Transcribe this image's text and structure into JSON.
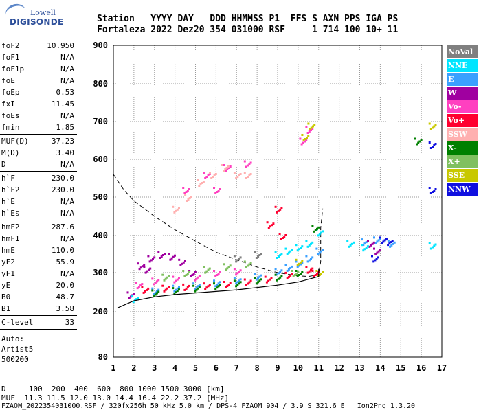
{
  "logo": {
    "line1": "Lowell",
    "line2": "DIGISONDE"
  },
  "header": {
    "line1": "Station   YYYY DAY   DDD HHMMSS P1  FFS S AXN PPS IGA PS",
    "line2": "Fortaleza 2022 Dez20 354 031000 RSF     1 714 100 10+ 11"
  },
  "params": {
    "g1": [
      [
        "foF2",
        "10.950"
      ],
      [
        "foF1",
        "N/A"
      ],
      [
        "foF1p",
        "N/A"
      ],
      [
        "foE",
        "N/A"
      ],
      [
        "foEp",
        "0.53"
      ],
      [
        "fxI",
        "11.45"
      ],
      [
        "foEs",
        "N/A"
      ],
      [
        "fmin",
        "1.85"
      ]
    ],
    "g2": [
      [
        "MUF(D)",
        "37.23"
      ],
      [
        "M(D)",
        "3.40"
      ],
      [
        "D",
        "N/A"
      ]
    ],
    "g3": [
      [
        "h`F",
        "230.0"
      ],
      [
        "h`F2",
        "230.0"
      ],
      [
        "h`E",
        "N/A"
      ],
      [
        "h`Es",
        "N/A"
      ]
    ],
    "g4": [
      [
        "hmF2",
        "287.6"
      ],
      [
        "hmF1",
        "N/A"
      ],
      [
        "hmE",
        "110.0"
      ],
      [
        "yF2",
        "55.9"
      ],
      [
        "yF1",
        "N/A"
      ],
      [
        "yE",
        "20.0"
      ],
      [
        "B0",
        "48.7"
      ],
      [
        "B1",
        "3.58"
      ]
    ],
    "g5": [
      [
        "C-level",
        "33"
      ]
    ],
    "auto": [
      "Auto:",
      "Artist5",
      "500200"
    ]
  },
  "legend": [
    {
      "label": "NoVal",
      "color": "#808080"
    },
    {
      "label": "NNE",
      "color": "#00e5ff"
    },
    {
      "label": "E",
      "color": "#3aa0ff"
    },
    {
      "label": "W",
      "color": "#a000a0"
    },
    {
      "label": "Vo-",
      "color": "#ff40c0"
    },
    {
      "label": "Vo+",
      "color": "#ff0030"
    },
    {
      "label": "SSW",
      "color": "#ffb0b0"
    },
    {
      "label": "X-",
      "color": "#008000"
    },
    {
      "label": "X+",
      "color": "#80c060"
    },
    {
      "label": "SSE",
      "color": "#c8c800"
    },
    {
      "label": "NNW",
      "color": "#1010e0"
    }
  ],
  "footer": {
    "line1": "D     100  200  400  600  800 1000 1500 3000 [km]",
    "line2": "MUF  11.3 11.5 12.0 13.0 14.4 16.4 22.2 37.2 [MHz]",
    "line3": "FZAOM_2022354031000.RSF / 320fx256h 50 kHz 5.0 km / DPS-4 FZAOM 904 / 3.9 S 321.6 E   Ion2Png 1.3.20"
  },
  "chart_data": {
    "type": "scatter",
    "xlim": [
      1,
      17
    ],
    "ylim": [
      80,
      900
    ],
    "x_ticks": [
      1,
      2,
      3,
      4,
      5,
      6,
      7,
      8,
      9,
      10,
      11,
      12,
      13,
      14,
      15,
      16,
      17
    ],
    "y_ticks": [
      80,
      200,
      300,
      400,
      500,
      600,
      700,
      800,
      900
    ],
    "grid": true,
    "series": [
      {
        "name": "E",
        "color": "#3aa0ff",
        "points": [
          [
            3,
            255
          ],
          [
            4,
            262
          ],
          [
            5,
            268
          ],
          [
            6,
            275
          ],
          [
            7,
            282
          ],
          [
            8,
            292
          ],
          [
            9,
            305
          ],
          [
            9.5,
            315
          ],
          [
            10,
            325
          ],
          [
            10.5,
            340
          ],
          [
            11,
            360
          ],
          [
            13.2,
            385
          ],
          [
            13.8,
            390
          ],
          [
            14.5,
            380
          ]
        ]
      },
      {
        "name": "Vo+",
        "color": "#ff0030",
        "points": [
          [
            2.5,
            258
          ],
          [
            3.5,
            262
          ],
          [
            4.5,
            265
          ],
          [
            5.5,
            268
          ],
          [
            6.5,
            272
          ],
          [
            7.5,
            278
          ],
          [
            8.5,
            285
          ],
          [
            9.5,
            295
          ],
          [
            10.5,
            310
          ],
          [
            8.6,
            430
          ],
          [
            9,
            470
          ],
          [
            9.2,
            400
          ],
          [
            10.8,
            300
          ]
        ]
      },
      {
        "name": "Vo-",
        "color": "#ff40c0",
        "points": [
          [
            2.2,
            270
          ],
          [
            3,
            280
          ],
          [
            4,
            285
          ],
          [
            5,
            290
          ],
          [
            6,
            300
          ],
          [
            7,
            305
          ],
          [
            4.5,
            520
          ],
          [
            5.5,
            560
          ],
          [
            6.5,
            580
          ],
          [
            7.5,
            590
          ],
          [
            6,
            520
          ],
          [
            10.2,
            650
          ],
          [
            10.5,
            680
          ]
        ]
      },
      {
        "name": "W",
        "color": "#a000a0",
        "points": [
          [
            1.8,
            245
          ],
          [
            2.3,
            320
          ],
          [
            2.8,
            340
          ],
          [
            3.3,
            350
          ],
          [
            3.8,
            345
          ],
          [
            4.3,
            330
          ],
          [
            4.8,
            300
          ],
          [
            2.6,
            310
          ],
          [
            13.5,
            380
          ],
          [
            13.8,
            360
          ]
        ]
      },
      {
        "name": "NNE",
        "color": "#00e5ff",
        "points": [
          [
            2,
            235
          ],
          [
            9,
            350
          ],
          [
            9.5,
            360
          ],
          [
            10,
            370
          ],
          [
            10.5,
            380
          ],
          [
            11,
            410
          ],
          [
            12.5,
            380
          ],
          [
            13.2,
            370
          ],
          [
            16.5,
            375
          ]
        ]
      },
      {
        "name": "X-",
        "color": "#008000",
        "points": [
          [
            3,
            250
          ],
          [
            4,
            256
          ],
          [
            5,
            262
          ],
          [
            6,
            268
          ],
          [
            7,
            275
          ],
          [
            8,
            282
          ],
          [
            9,
            290
          ],
          [
            10,
            300
          ],
          [
            10.8,
            420
          ],
          [
            15.8,
            650
          ]
        ]
      },
      {
        "name": "X+",
        "color": "#80c060",
        "points": [
          [
            3.5,
            290
          ],
          [
            4.5,
            300
          ],
          [
            5.5,
            310
          ],
          [
            6.5,
            318
          ],
          [
            7.5,
            325
          ],
          [
            9.8,
            300
          ]
        ]
      },
      {
        "name": "SSW",
        "color": "#ffb0b0",
        "points": [
          [
            4.6,
            500
          ],
          [
            5.2,
            540
          ],
          [
            5.8,
            560
          ],
          [
            6.4,
            580
          ],
          [
            7,
            560
          ],
          [
            7.5,
            560
          ],
          [
            4,
            470
          ]
        ]
      },
      {
        "name": "SSE",
        "color": "#c8c800",
        "points": [
          [
            10.3,
            660
          ],
          [
            10.6,
            690
          ],
          [
            16.5,
            690
          ],
          [
            10,
            330
          ],
          [
            11,
            300
          ]
        ]
      },
      {
        "name": "NNW",
        "color": "#1010e0",
        "points": [
          [
            13.7,
            340
          ],
          [
            14.1,
            390
          ],
          [
            14.4,
            385
          ],
          [
            16.5,
            520
          ],
          [
            16.5,
            640
          ]
        ]
      },
      {
        "name": "NoVal",
        "color": "#808080",
        "points": [
          [
            7,
            340
          ],
          [
            8,
            350
          ]
        ]
      }
    ],
    "curves": {
      "profile_solid": [
        [
          1.2,
          210
        ],
        [
          2,
          228
        ],
        [
          3,
          238
        ],
        [
          4,
          244
        ],
        [
          5,
          248
        ],
        [
          6,
          252
        ],
        [
          7,
          256
        ],
        [
          8,
          262
        ],
        [
          9,
          268
        ],
        [
          10,
          276
        ],
        [
          10.5,
          283
        ],
        [
          11,
          290
        ],
        [
          11,
          310
        ]
      ],
      "profile_dashed": [
        [
          1,
          560
        ],
        [
          1.5,
          520
        ],
        [
          2,
          490
        ],
        [
          3,
          450
        ],
        [
          4,
          415
        ],
        [
          5,
          385
        ],
        [
          6,
          355
        ],
        [
          7,
          335
        ],
        [
          8,
          315
        ],
        [
          9,
          300
        ],
        [
          10,
          292
        ],
        [
          10.5,
          290
        ],
        [
          11,
          295
        ],
        [
          11.1,
          330
        ],
        [
          11.1,
          420
        ],
        [
          11.2,
          470
        ]
      ]
    }
  }
}
